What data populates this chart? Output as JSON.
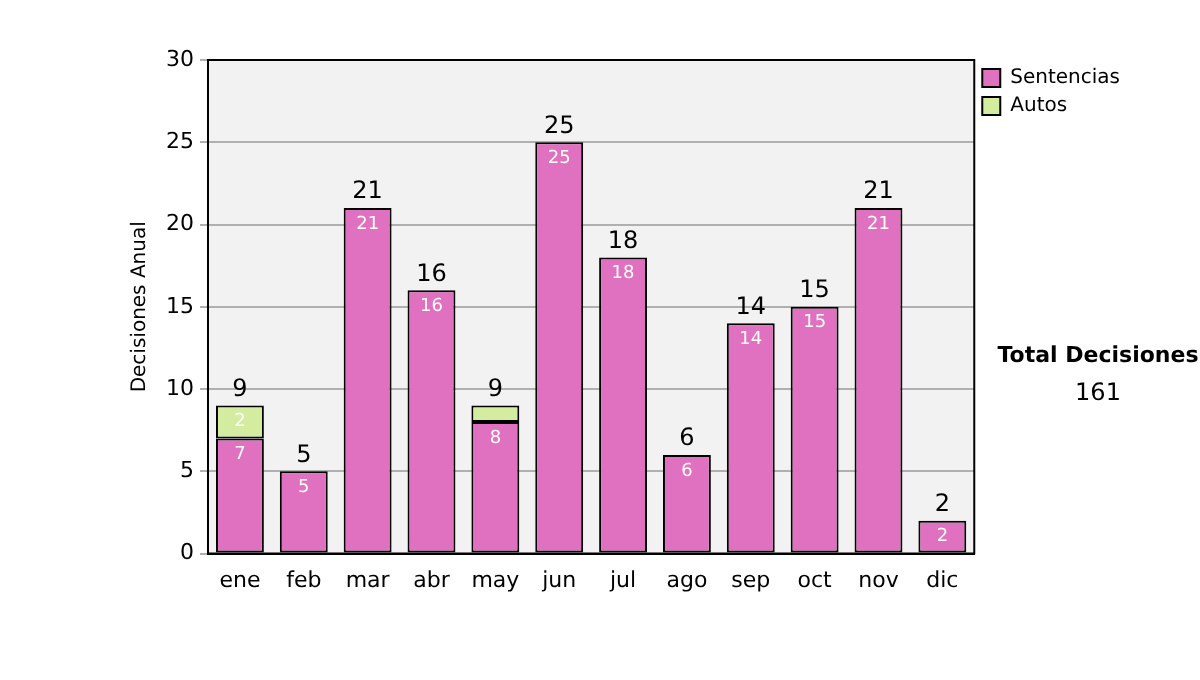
{
  "chart_data": {
    "type": "bar",
    "stacked": true,
    "ylabel": "Decisiones Anual",
    "categories": [
      "ene",
      "feb",
      "mar",
      "abr",
      "may",
      "jun",
      "jul",
      "ago",
      "sep",
      "oct",
      "nov",
      "dic"
    ],
    "series": [
      {
        "name": "Sentencias",
        "color": "#e070c0",
        "values": [
          7,
          5,
          21,
          16,
          8,
          25,
          18,
          6,
          14,
          15,
          21,
          2
        ],
        "value_labels": [
          "7",
          "5",
          "21",
          "16",
          "8",
          "25",
          "18",
          "6",
          "14",
          "15",
          "21",
          "2"
        ]
      },
      {
        "name": "Autos",
        "color": "#d4eca0",
        "values": [
          2,
          null,
          null,
          null,
          1,
          null,
          null,
          null,
          null,
          null,
          null,
          null
        ],
        "value_labels": [
          "2",
          null,
          null,
          null,
          null,
          null,
          null,
          null,
          null,
          null,
          null,
          null
        ]
      }
    ],
    "totals": [
      "9",
      "5",
      "21",
      "16",
      "9",
      "25",
      "18",
      "6",
      "14",
      "15",
      "21",
      "2"
    ],
    "ylim": [
      0,
      30
    ],
    "yticks": [
      0,
      5,
      10,
      15,
      20,
      25,
      30
    ],
    "grid": "y",
    "legend": "right",
    "annotations": [
      "Total Decisiones",
      "161"
    ]
  }
}
